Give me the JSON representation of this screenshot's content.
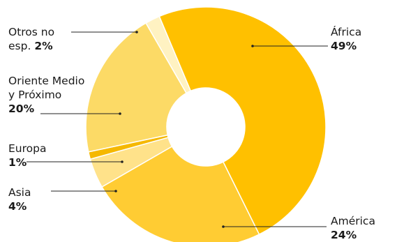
{
  "chart_data": {
    "type": "pie",
    "variant": "donut",
    "start": "top-right, clockwise from Otros no esp.",
    "slices": [
      {
        "name": "África",
        "value": 49,
        "value_label": "49%",
        "color": "#FFC000"
      },
      {
        "name": "América",
        "value": 24,
        "value_label": "24%",
        "color": "#FFCC33"
      },
      {
        "name": "Asia",
        "value": 4,
        "value_label": "4%",
        "color": "#FFE28A"
      },
      {
        "name": "Europa",
        "value": 1,
        "value_label": "1%",
        "color": "#F5B800"
      },
      {
        "name": "Oriente Medio y Próximo",
        "value": 20,
        "value_label": "20%",
        "color": "#FCDA66"
      },
      {
        "name": "Otros no esp.",
        "value": 2,
        "value_label": "2%",
        "color": "#FFF2C2"
      }
    ],
    "labels": {
      "africa": {
        "line1": "África",
        "value": "49%"
      },
      "america": {
        "line1": "América",
        "value": "24%"
      },
      "asia": {
        "line1": "Asia",
        "value": "4%"
      },
      "europa": {
        "line1": "Europa",
        "value": "1%"
      },
      "oriente": {
        "line1": "Oriente Medio",
        "line2": "y Próximo",
        "value": "20%"
      },
      "otros": {
        "line1": "Otros no",
        "line2": "esp.",
        "value": "2%"
      }
    }
  }
}
